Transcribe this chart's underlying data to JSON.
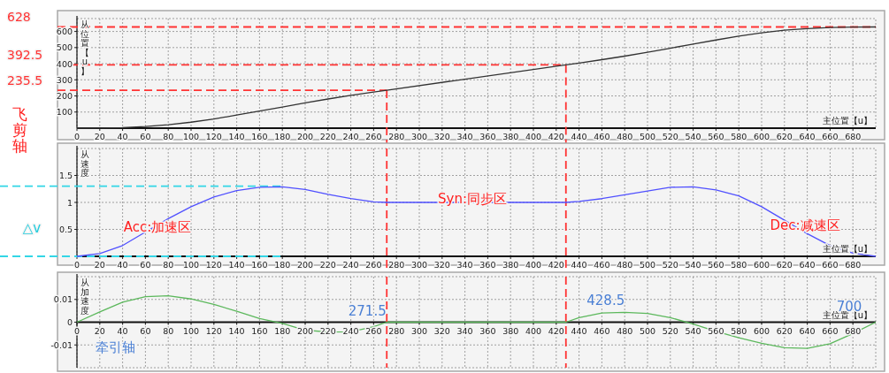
{
  "chart_data": [
    {
      "type": "line",
      "xlabel": "主位置【u】",
      "ylabel": "从位置【u】",
      "color": "#333333",
      "grid": true,
      "x": [
        0,
        20,
        40,
        60,
        80,
        100,
        120,
        140,
        160,
        180,
        200,
        220,
        240,
        260,
        271.5,
        428.5,
        440,
        460,
        480,
        500,
        520,
        540,
        560,
        580,
        600,
        620,
        640,
        660,
        680,
        700
      ],
      "values": [
        0,
        1,
        3,
        10,
        21,
        37,
        57,
        81,
        106,
        131,
        157,
        181,
        203,
        224,
        235.5,
        392.5,
        404,
        425,
        447,
        471,
        496,
        522,
        547,
        571,
        592,
        608,
        618,
        624,
        627,
        628
      ],
      "xlim": [
        0,
        700
      ],
      "xticks": [
        0,
        20,
        40,
        60,
        80,
        100,
        120,
        140,
        160,
        180,
        200,
        220,
        240,
        260,
        280,
        300,
        320,
        340,
        360,
        380,
        400,
        420,
        440,
        460,
        480,
        500,
        520,
        540,
        560,
        580,
        600,
        620,
        640,
        660,
        680
      ],
      "ylim": [
        0,
        680
      ],
      "yticks": [
        100,
        200,
        300,
        400,
        500,
        600
      ],
      "ref_lines": [
        {
          "axis": "y",
          "value": 628,
          "label": "628",
          "color": "#ff3333",
          "line_style": "dashed"
        },
        {
          "axis": "y",
          "value": 392.5,
          "label": "392.5",
          "color": "#ff3333",
          "line_style": "dashed"
        },
        {
          "axis": "y",
          "value": 235.5,
          "label": "235.5",
          "color": "#ff3333",
          "line_style": "dashed"
        },
        {
          "axis": "x",
          "value": 271.5,
          "color": "#ff3333",
          "line_style": "dashed"
        },
        {
          "axis": "x",
          "value": 428.5,
          "color": "#ff3333",
          "line_style": "dashed"
        }
      ],
      "annotations": [
        "飞剪轴"
      ]
    },
    {
      "type": "line",
      "xlabel": "主位置【u】",
      "ylabel": "从速度",
      "color": "#5050ff",
      "grid": true,
      "x": [
        0,
        20,
        40,
        60,
        80,
        100,
        120,
        140,
        160,
        180,
        200,
        220,
        240,
        260,
        271.5,
        428.5,
        440,
        460,
        480,
        500,
        520,
        540,
        560,
        580,
        600,
        620,
        640,
        660,
        680,
        700
      ],
      "values": [
        0,
        0.05,
        0.2,
        0.45,
        0.7,
        0.92,
        1.1,
        1.22,
        1.28,
        1.29,
        1.24,
        1.15,
        1.07,
        1.01,
        1,
        1,
        1.02,
        1.07,
        1.14,
        1.21,
        1.28,
        1.29,
        1.23,
        1.12,
        0.92,
        0.67,
        0.42,
        0.2,
        0.06,
        0
      ],
      "xlim": [
        0,
        700
      ],
      "xticks": [
        0,
        20,
        40,
        60,
        80,
        100,
        120,
        140,
        160,
        180,
        200,
        220,
        240,
        260,
        280,
        300,
        320,
        340,
        360,
        380,
        400,
        420,
        440,
        460,
        480,
        500,
        520,
        540,
        560,
        580,
        600,
        620,
        640,
        660,
        680
      ],
      "ylim": [
        0,
        2
      ],
      "yticks": [
        0.5,
        1,
        1.5
      ],
      "ref_lines": [
        {
          "axis": "y",
          "value": 1.3,
          "color": "#33d6e6",
          "line_style": "dashed"
        },
        {
          "axis": "y",
          "value": 0,
          "color": "#33d6e6",
          "line_style": "dashed"
        },
        {
          "axis": "x",
          "value": 271.5,
          "color": "#ff3333",
          "line_style": "dashed"
        },
        {
          "axis": "x",
          "value": 428.5,
          "color": "#ff3333",
          "line_style": "dashed"
        }
      ],
      "annotations": [
        "△v",
        "Acc:加速区",
        "Syn:同步区",
        "Dec:减速区"
      ]
    },
    {
      "type": "line",
      "xlabel": "主位置【u】",
      "ylabel": "从加速度",
      "color": "#5cb85c",
      "grid": true,
      "x": [
        0,
        20,
        40,
        60,
        80,
        100,
        120,
        140,
        160,
        180,
        200,
        220,
        240,
        260,
        271.5,
        428.5,
        440,
        460,
        480,
        500,
        520,
        540,
        560,
        580,
        600,
        620,
        640,
        660,
        680,
        700
      ],
      "values": [
        0,
        0.0045,
        0.0088,
        0.0112,
        0.0116,
        0.0102,
        0.0078,
        0.0048,
        0.0016,
        -0.0005,
        -0.0035,
        -0.0043,
        -0.0042,
        -0.002,
        0,
        0,
        0.002,
        0.004,
        0.0043,
        0.0038,
        0.002,
        -0.0008,
        -0.004,
        -0.0068,
        -0.0093,
        -0.0112,
        -0.0115,
        -0.0095,
        -0.005,
        0
      ],
      "xlim": [
        0,
        700
      ],
      "xticks": [
        0,
        20,
        40,
        60,
        80,
        100,
        120,
        140,
        160,
        180,
        200,
        220,
        240,
        260,
        280,
        300,
        320,
        340,
        360,
        380,
        400,
        420,
        440,
        460,
        480,
        500,
        520,
        540,
        560,
        580,
        600,
        620,
        640,
        660,
        680
      ],
      "ylim": [
        -0.02,
        0.02
      ],
      "yticks": [
        -0.01,
        0,
        0.01
      ],
      "ref_lines": [
        {
          "axis": "x",
          "value": 271.5,
          "color": "#ff3333",
          "line_style": "dashed"
        },
        {
          "axis": "x",
          "value": 428.5,
          "color": "#ff3333",
          "line_style": "dashed"
        }
      ],
      "annotations": [
        "牵引轴",
        {
          "text": "271.5",
          "x": 271.5,
          "y": 0
        },
        {
          "text": "428.5",
          "x": 428.5,
          "y": 0
        },
        {
          "text": "700",
          "x": 700,
          "y": 0
        }
      ]
    }
  ]
}
